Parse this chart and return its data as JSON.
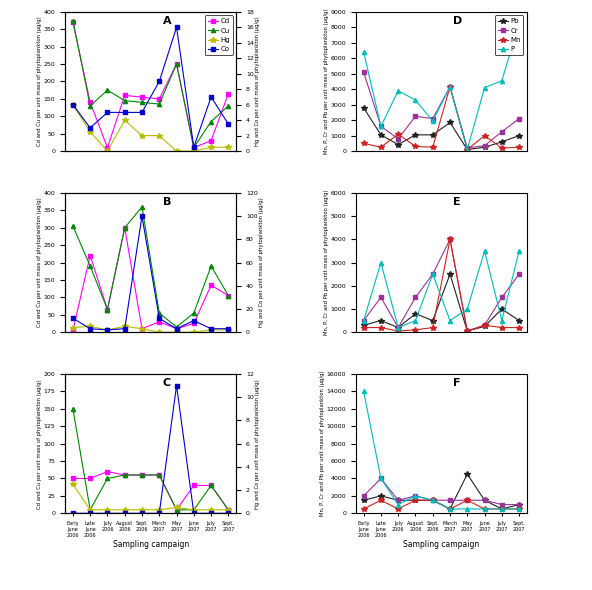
{
  "x_labels": [
    "Early\nJune\n2006",
    "Late\nJune\n2006",
    "July\n2006",
    "August\n2006",
    "Sept.\n2006",
    "March\n2007",
    "May\n2007",
    "June\n2007",
    "July\n2007",
    "Sept.\n2007"
  ],
  "x_label": "Sampling campaign",
  "panel_A": {
    "label": "A",
    "Cd": [
      370,
      140,
      10,
      160,
      155,
      150,
      250,
      10,
      30,
      165
    ],
    "Cu": [
      375,
      130,
      175,
      145,
      140,
      135,
      250,
      10,
      85,
      130
    ],
    "Hg": [
      6,
      2.5,
      0,
      4,
      2,
      2,
      0,
      0,
      0.5,
      0.5
    ],
    "Co": [
      6,
      3,
      5,
      5,
      5,
      9,
      16,
      0.5,
      7,
      3.5
    ],
    "ylim_left": [
      0,
      400
    ],
    "ylim_right": [
      0,
      18
    ],
    "ylabel_left": "Cd and Cu per unit mass of phytoplankton (µg/g)",
    "ylabel_right": "Hg and Co per unit mass of phytoplankton (µg/g)"
  },
  "panel_B": {
    "label": "B",
    "Cd": [
      5,
      220,
      65,
      300,
      10,
      30,
      10,
      25,
      135,
      105
    ],
    "Cu": [
      305,
      190,
      65,
      300,
      360,
      55,
      15,
      55,
      190,
      105
    ],
    "Hg": [
      4,
      5,
      2,
      5,
      3,
      0,
      0,
      0,
      2,
      2
    ],
    "Co": [
      12,
      3,
      2,
      3,
      100,
      12,
      3,
      10,
      3,
      3
    ],
    "ylim_left": [
      0,
      400
    ],
    "ylim_right": [
      0,
      120
    ],
    "ylabel_left": "Cd and Cu per unit mass of phytoplankton (µg/g)",
    "ylabel_right": "Hg and Co per unit mass of phytoplankton (µg/g)"
  },
  "panel_C": {
    "label": "C",
    "Cd": [
      50,
      50,
      60,
      55,
      55,
      55,
      5,
      40,
      40,
      5
    ],
    "Cu": [
      150,
      5,
      50,
      55,
      55,
      55,
      5,
      5,
      40,
      5
    ],
    "Hg": [
      2.5,
      0.3,
      0.3,
      0.3,
      0.3,
      0.3,
      0.5,
      0.3,
      0.3,
      0.3
    ],
    "Co": [
      0,
      0,
      0,
      0,
      0,
      0,
      11,
      0,
      0,
      0
    ],
    "ylim_left": [
      0,
      200
    ],
    "ylim_right": [
      0,
      12
    ],
    "ylabel_left": "Cd and Cu per unit mass of phytoplankton (µg/g)",
    "ylabel_right": "Hg and Co per unit mass of phytoplankton (µg/g)"
  },
  "panel_D": {
    "label": "D",
    "Pb": [
      2800,
      1050,
      420,
      1050,
      1050,
      1850,
      100,
      250,
      600,
      1000
    ],
    "Cr": [
      5100,
      1600,
      800,
      2250,
      2100,
      4150,
      200,
      350,
      1250,
      2100
    ],
    "Mn": [
      500,
      250,
      1100,
      300,
      250,
      4150,
      100,
      1000,
      200,
      250
    ],
    "P": [
      6400,
      1600,
      3900,
      3300,
      1950,
      4150,
      100,
      4100,
      4550,
      8250
    ],
    "ylim_left": [
      0,
      9000
    ],
    "ylabel_left": "Mn, P, Cr and Pb per unit mass of phytoplankton (µg/g)"
  },
  "panel_E": {
    "label": "E",
    "Pb": [
      300,
      500,
      200,
      800,
      500,
      2500,
      50,
      250,
      1000,
      500
    ],
    "Cr": [
      500,
      1500,
      200,
      1500,
      2500,
      4000,
      50,
      300,
      1500,
      2500
    ],
    "Mn": [
      200,
      200,
      50,
      100,
      200,
      4000,
      50,
      300,
      200,
      200
    ],
    "P": [
      500,
      3000,
      200,
      500,
      2500,
      500,
      1000,
      3500,
      500,
      3500
    ],
    "ylim_left": [
      0,
      6000
    ],
    "ylabel_left": "Mn, P, Cr and Pb per unit mass of phytoplankton (µg/g)"
  },
  "panel_F": {
    "label": "F",
    "Pb": [
      1500,
      2000,
      1500,
      1500,
      1500,
      500,
      4500,
      1500,
      500,
      1000
    ],
    "Cr": [
      2000,
      4000,
      1500,
      2000,
      1500,
      1500,
      1500,
      1500,
      1000,
      1000
    ],
    "Mn": [
      500,
      1500,
      500,
      1500,
      1500,
      500,
      1500,
      500,
      500,
      500
    ],
    "P": [
      14000,
      4000,
      1000,
      2000,
      1500,
      500,
      500,
      500,
      500,
      500
    ],
    "ylim_left": [
      0,
      16000
    ],
    "ylabel_left": "Mn, P, Cr and Pb per unit mass of phytoplankton (µg/g)"
  },
  "colors": {
    "Cd": "#FF00FF",
    "Cu": "#008800",
    "Hg": "#BBBB00",
    "Co": "#0000CC",
    "Pb": "#222222",
    "Cr": "#993399",
    "Mn": "#CC2222",
    "P": "#00BBBB"
  },
  "markers": {
    "Cd": "s",
    "Cu": "^",
    "Hg": "*",
    "Co": "s",
    "Pb": "*",
    "Cr": "s",
    "Mn": "*",
    "P": "^"
  }
}
